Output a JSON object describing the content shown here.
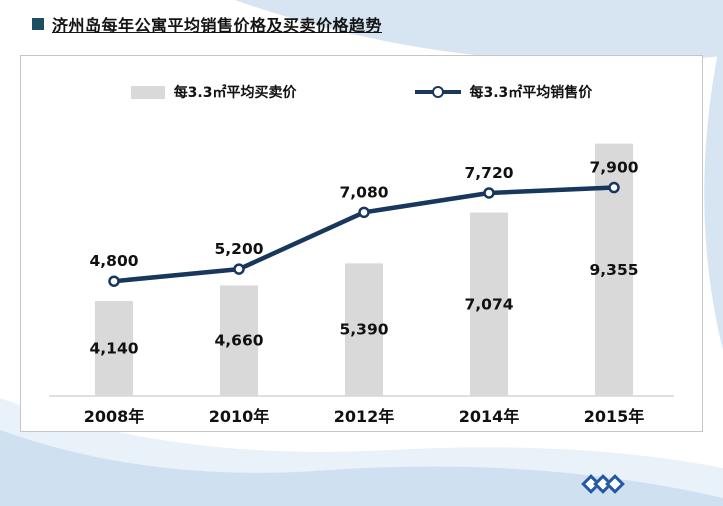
{
  "page": {
    "title": "济州岛每年公寓平均销售价格及买卖价格趋势"
  },
  "legend": {
    "bar": "每3.3㎡平均买卖价",
    "line": "每3.3㎡平均销售价"
  },
  "chart_data": {
    "type": "combo",
    "categories": [
      "2008年",
      "2010年",
      "2012年",
      "2014年",
      "2015年"
    ],
    "series": [
      {
        "name": "每3.3㎡平均买卖价",
        "type": "bar",
        "color": "#d9d9d9",
        "values": [
          4140,
          4660,
          5390,
          7074,
          9355
        ]
      },
      {
        "name": "每3.3㎡平均销售价",
        "type": "line",
        "color": "#17375d",
        "values": [
          4800,
          5200,
          7080,
          7720,
          7900
        ]
      }
    ],
    "ylim": [
      1000,
      10500
    ],
    "grid": false,
    "y_axis_visible": false,
    "legend_position": "top-inside",
    "value_label_format": "thousands-comma"
  },
  "colors": {
    "bar": "#d9d9d9",
    "line": "#17375d",
    "title_bullet": "#1e4e62",
    "panel_border": "#c6c6c6",
    "swoosh": "#d7e5f2",
    "diamond": "#2457a7",
    "axis": "#bfbfbf",
    "label_text": "#111111"
  },
  "decor": {
    "diamond_count": 3
  }
}
